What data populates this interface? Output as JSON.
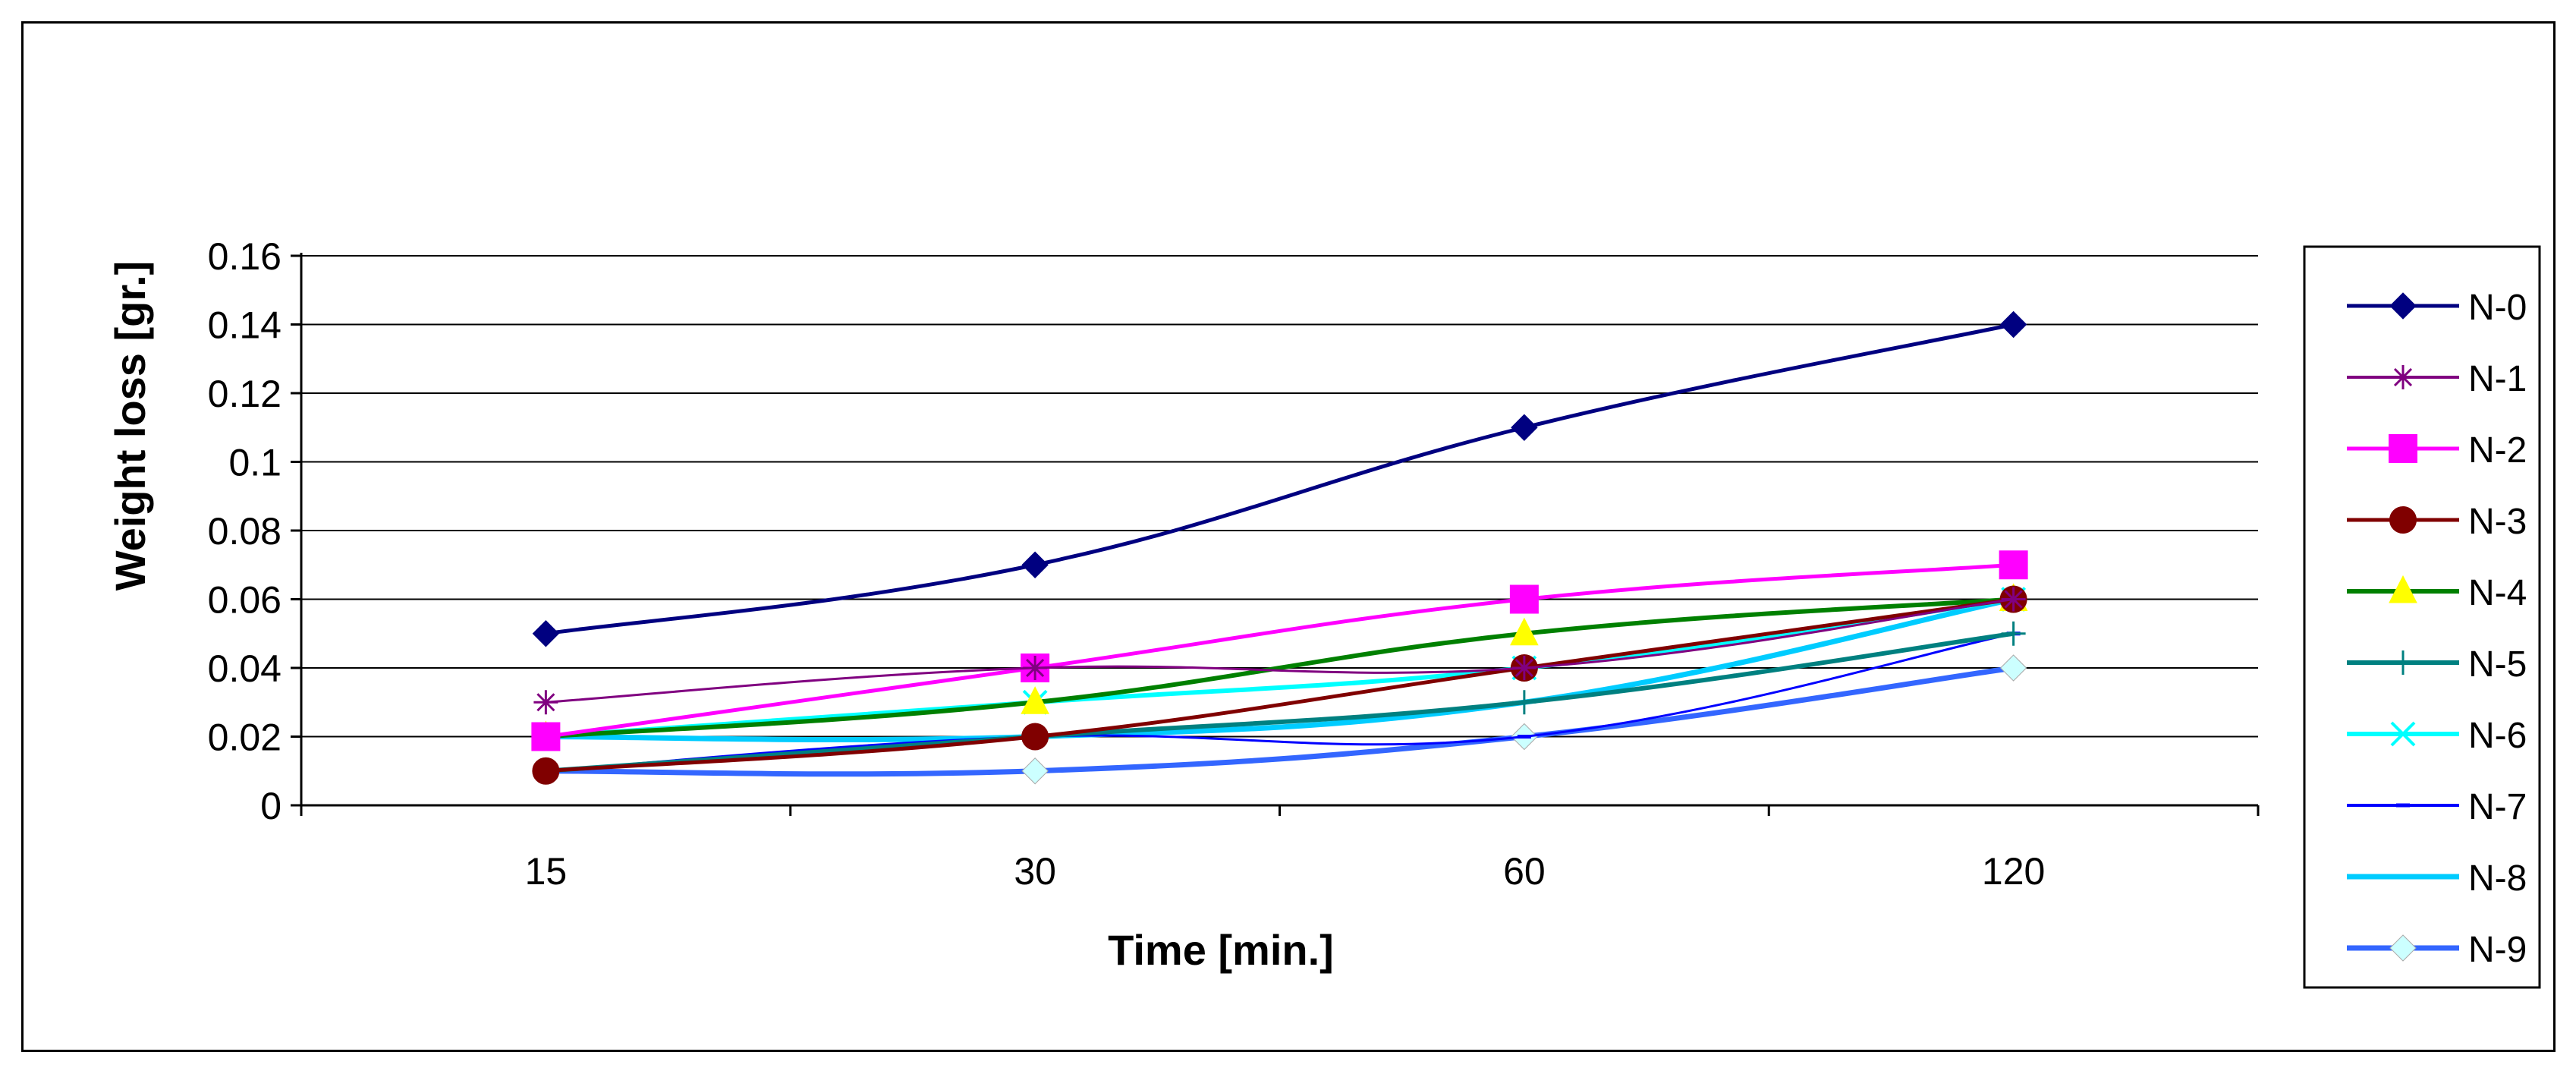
{
  "chart_data": {
    "type": "line",
    "title": "",
    "xlabel": "Time [min.]",
    "ylabel": "Weight loss [gr.]",
    "categories": [
      "15",
      "30",
      "60",
      "120"
    ],
    "ylim": [
      0,
      0.16
    ],
    "yticks": [
      "0",
      "0.02",
      "0.04",
      "0.06",
      "0.08",
      "0.1",
      "0.12",
      "0.14",
      "0.16"
    ],
    "grid": true,
    "legend_position": "right",
    "series": [
      {
        "name": "N-0",
        "values": [
          0.05,
          0.07,
          0.11,
          0.14
        ],
        "color": "#000080",
        "marker": "diamond",
        "width": 5
      },
      {
        "name": "N-1",
        "values": [
          0.03,
          0.04,
          0.04,
          0.06
        ],
        "color": "#800080",
        "marker": "asterisk",
        "width": 3
      },
      {
        "name": "N-2",
        "values": [
          0.02,
          0.04,
          0.06,
          0.07
        ],
        "color": "#ff00ff",
        "marker": "square",
        "width": 5
      },
      {
        "name": "N-3",
        "values": [
          0.01,
          0.02,
          0.04,
          0.06
        ],
        "color": "#800000",
        "marker": "circle",
        "width": 5
      },
      {
        "name": "N-4",
        "values": [
          0.02,
          0.03,
          0.05,
          0.06
        ],
        "color": "#008000",
        "marker": "triangle",
        "markerColor": "#ffff00",
        "width": 6
      },
      {
        "name": "N-5",
        "values": [
          0.01,
          0.02,
          0.03,
          0.05
        ],
        "color": "#008080",
        "marker": "plus",
        "width": 6
      },
      {
        "name": "N-6",
        "values": [
          0.02,
          0.03,
          0.04,
          0.06
        ],
        "color": "#00ffff",
        "marker": "x",
        "width": 6
      },
      {
        "name": "N-7",
        "values": [
          0.01,
          0.02,
          0.02,
          0.05
        ],
        "color": "#0000ff",
        "marker": "dash",
        "width": 3
      },
      {
        "name": "N-8",
        "values": [
          0.02,
          0.02,
          0.03,
          0.06
        ],
        "color": "#00ccff",
        "marker": "none",
        "width": 7
      },
      {
        "name": "N-9",
        "values": [
          0.01,
          0.01,
          0.02,
          0.04
        ],
        "color": "#3366ff",
        "marker": "diamond",
        "markerColor": "#ccffff",
        "width": 7
      }
    ]
  }
}
